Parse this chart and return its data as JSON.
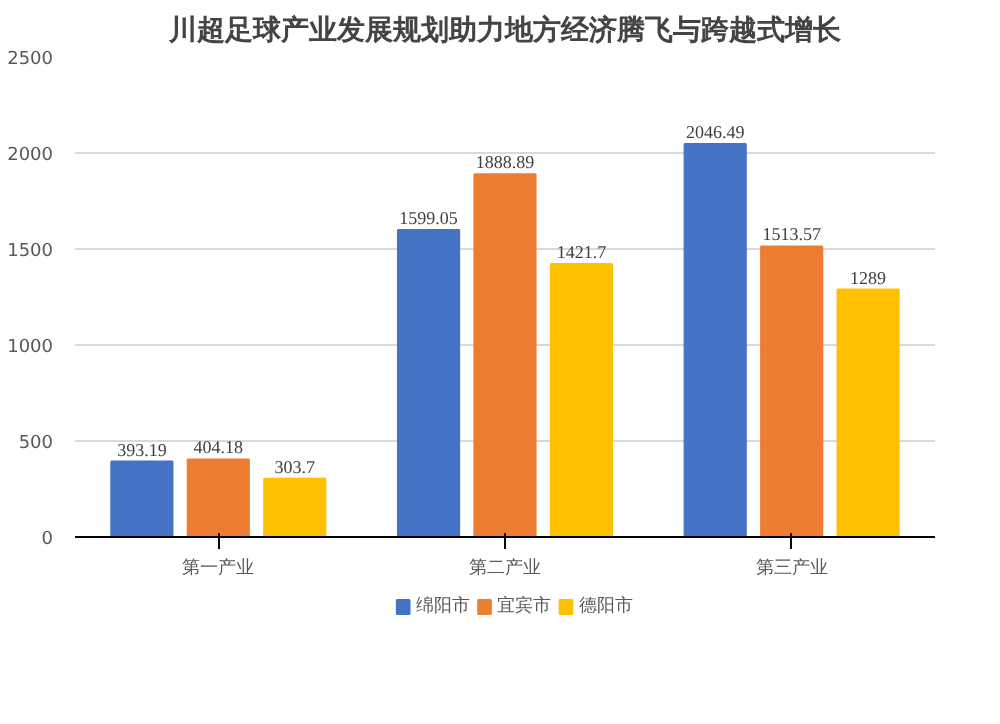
{
  "chart_data": {
    "type": "bar",
    "title": "川超足球产业发展规划助力地方经济腾飞与跨越式增长",
    "categories": [
      "第一产业",
      "第二产业",
      "第三产业"
    ],
    "series": [
      {
        "name": "绵阳市",
        "color": "#4472c4",
        "values": [
          393.19,
          1599.05,
          2046.49
        ]
      },
      {
        "name": "宜宾市",
        "color": "#ed7d31",
        "values": [
          404.18,
          1888.89,
          1513.57
        ]
      },
      {
        "name": "德阳市",
        "color": "#ffc000",
        "values": [
          303.7,
          1421.7,
          1289
        ]
      }
    ],
    "ylim": [
      0,
      2500
    ],
    "yticks": [
      0,
      500,
      1000,
      1500,
      2000,
      2500
    ],
    "grid": "y",
    "legend": "bottom",
    "data_labels": true
  }
}
